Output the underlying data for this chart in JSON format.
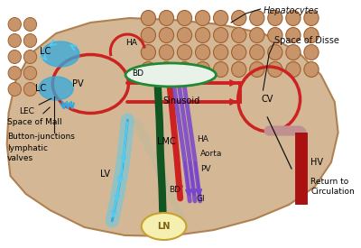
{
  "liver_fill": "#d4b896",
  "liver_edge": "#b08050",
  "hepatocyte_face": "#c8956a",
  "hepatocyte_edge": "#a06030",
  "red": "#cc2222",
  "green": "#228833",
  "dark_green": "#115522",
  "blue": "#33aadd",
  "cyan": "#55ccee",
  "purple": "#7744cc",
  "tan": "#c8b898",
  "hv_red": "#aa1111",
  "ln_fill": "#f5f0b0",
  "ln_edge": "#c8a030",
  "bg": "#ffffff",
  "black": "#111111",
  "figsize": [
    4.0,
    2.75
  ],
  "dpi": 100,
  "labels": {
    "hepatocytes": "Hepatocytes",
    "space_disse": "Space of Disse",
    "sinusoid": "Sinusoid",
    "cv": "CV",
    "pv": "PV",
    "ha_inner": "HA",
    "bd": "BD",
    "lc": "LC",
    "lec": "LEC",
    "space_mall": "Space of Mall",
    "button": "Button-junctions",
    "lymphatic": "lymphatic\nvalves",
    "lmc": "LMC",
    "lv": "LV",
    "ln": "LN",
    "hv": "HV",
    "return_circ": "Return to\nCirculation",
    "ha_bot": "HA",
    "aorta": "Aorta",
    "pv_bot": "PV",
    "gi": "GI",
    "bd_bot": "BD"
  }
}
